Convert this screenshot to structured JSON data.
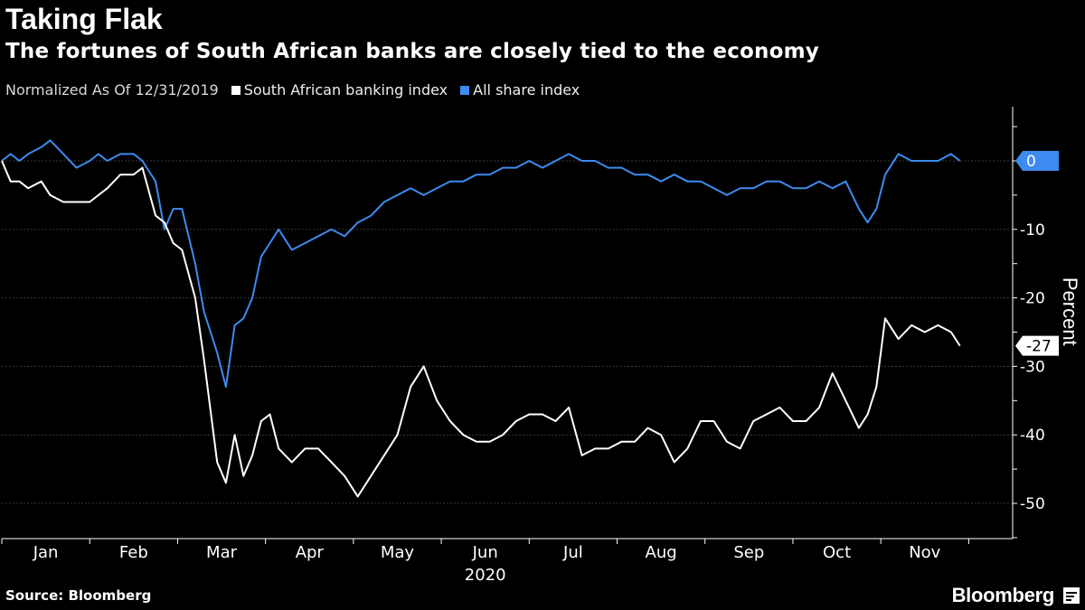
{
  "header": {
    "title": "Taking Flak",
    "subtitle": "The fortunes of South African banks are closely tied to the economy"
  },
  "legend": {
    "note": "Normalized As Of 12/31/2019",
    "items": [
      "South African banking index",
      "All share index"
    ]
  },
  "footer": {
    "source": "Source: Bloomberg",
    "brand": "Bloomberg"
  },
  "colors": {
    "background": "#000000",
    "banking": "#ffffff",
    "allshare": "#3d8bf0",
    "grid": "#3a3a3a",
    "axis": "#ffffff"
  },
  "chart_data": {
    "type": "line",
    "title": "Taking Flak",
    "xlabel": "2020",
    "ylabel": "Percent",
    "ylim": [
      -55,
      8
    ],
    "yticks": [
      0,
      -10,
      -20,
      -30,
      -40,
      -50
    ],
    "ytick_labels": [
      "0",
      "-10",
      "-20",
      "-30",
      "-40",
      "-50"
    ],
    "month_labels": [
      "Jan",
      "Feb",
      "Mar",
      "Apr",
      "May",
      "Jun",
      "Jul",
      "Aug",
      "Sep",
      "Oct",
      "Nov"
    ],
    "year_label": "2020",
    "x_note": "x = month index, 0 = Dec 31 2019, 1 = end of Jan ...",
    "series": [
      {
        "name": "All share index",
        "color": "#3d8bf0",
        "last_label": "0",
        "x": [
          0,
          0.1,
          0.2,
          0.3,
          0.45,
          0.55,
          0.7,
          0.85,
          1.0,
          1.1,
          1.2,
          1.35,
          1.5,
          1.6,
          1.75,
          1.85,
          1.95,
          2.05,
          2.2,
          2.3,
          2.45,
          2.55,
          2.65,
          2.75,
          2.85,
          2.95,
          3.05,
          3.15,
          3.3,
          3.45,
          3.6,
          3.75,
          3.9,
          4.05,
          4.2,
          4.35,
          4.5,
          4.65,
          4.8,
          4.95,
          5.1,
          5.25,
          5.4,
          5.55,
          5.7,
          5.85,
          6.0,
          6.15,
          6.3,
          6.45,
          6.6,
          6.75,
          6.9,
          7.05,
          7.2,
          7.35,
          7.5,
          7.65,
          7.8,
          7.95,
          8.1,
          8.25,
          8.4,
          8.55,
          8.7,
          8.85,
          9.0,
          9.15,
          9.3,
          9.45,
          9.6,
          9.75,
          9.85,
          9.95,
          10.05,
          10.2,
          10.35,
          10.5,
          10.65,
          10.8,
          10.9
        ],
        "values": [
          0,
          1,
          0,
          1,
          2,
          3,
          1,
          -1,
          0,
          1,
          0,
          1,
          1,
          0,
          -3,
          -10,
          -7,
          -7,
          -15,
          -22,
          -28,
          -33,
          -24,
          -23,
          -20,
          -14,
          -12,
          -10,
          -13,
          -12,
          -11,
          -10,
          -11,
          -9,
          -8,
          -6,
          -5,
          -4,
          -5,
          -4,
          -3,
          -3,
          -2,
          -2,
          -1,
          -1,
          0,
          -1,
          0,
          1,
          0,
          0,
          -1,
          -1,
          -2,
          -2,
          -3,
          -2,
          -3,
          -3,
          -4,
          -5,
          -4,
          -4,
          -3,
          -3,
          -4,
          -4,
          -3,
          -4,
          -3,
          -7,
          -9,
          -7,
          -2,
          1,
          0,
          0,
          0,
          1,
          0
        ]
      },
      {
        "name": "South African banking index",
        "color": "#ffffff",
        "last_label": "-27",
        "x": [
          0,
          0.1,
          0.2,
          0.3,
          0.45,
          0.55,
          0.7,
          0.85,
          1.0,
          1.1,
          1.2,
          1.35,
          1.5,
          1.6,
          1.75,
          1.85,
          1.95,
          2.05,
          2.2,
          2.3,
          2.45,
          2.55,
          2.65,
          2.75,
          2.85,
          2.95,
          3.05,
          3.15,
          3.3,
          3.45,
          3.6,
          3.75,
          3.9,
          4.05,
          4.2,
          4.35,
          4.5,
          4.65,
          4.8,
          4.95,
          5.1,
          5.25,
          5.4,
          5.55,
          5.7,
          5.85,
          6.0,
          6.15,
          6.3,
          6.45,
          6.6,
          6.75,
          6.9,
          7.05,
          7.2,
          7.35,
          7.5,
          7.65,
          7.8,
          7.95,
          8.1,
          8.25,
          8.4,
          8.55,
          8.7,
          8.85,
          9.0,
          9.15,
          9.3,
          9.45,
          9.6,
          9.75,
          9.85,
          9.95,
          10.05,
          10.2,
          10.35,
          10.5,
          10.65,
          10.8,
          10.9
        ],
        "values": [
          0,
          -3,
          -3,
          -4,
          -3,
          -5,
          -6,
          -6,
          -6,
          -5,
          -4,
          -2,
          -2,
          -1,
          -8,
          -9,
          -12,
          -13,
          -20,
          -29,
          -44,
          -47,
          -40,
          -46,
          -43,
          -38,
          -37,
          -42,
          -44,
          -42,
          -42,
          -44,
          -46,
          -49,
          -46,
          -43,
          -40,
          -33,
          -30,
          -35,
          -38,
          -40,
          -41,
          -41,
          -40,
          -38,
          -37,
          -37,
          -38,
          -36,
          -43,
          -42,
          -42,
          -41,
          -41,
          -39,
          -40,
          -44,
          -42,
          -38,
          -38,
          -41,
          -42,
          -38,
          -37,
          -36,
          -38,
          -38,
          -36,
          -31,
          -35,
          -39,
          -37,
          -33,
          -23,
          -26,
          -24,
          -25,
          -24,
          -25,
          -27
        ]
      }
    ]
  }
}
